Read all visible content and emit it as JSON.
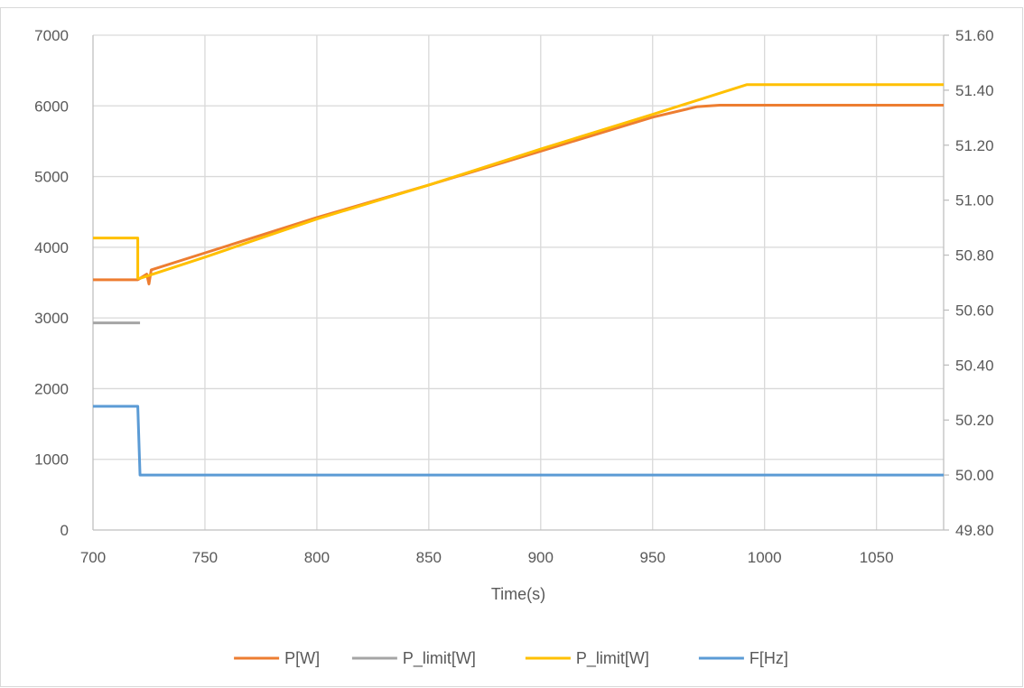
{
  "chart_data": {
    "type": "line",
    "title": "",
    "xlabel": "Time(s)",
    "ylabel": "",
    "y2label": "",
    "xlim": [
      700,
      1080
    ],
    "ylim": [
      0,
      7000
    ],
    "y2lim": [
      49.8,
      51.6
    ],
    "x_ticks": [
      "700",
      "750",
      "800",
      "850",
      "900",
      "950",
      "1000",
      "1050"
    ],
    "y_ticks": [
      "0",
      "1000",
      "2000",
      "3000",
      "4000",
      "5000",
      "6000",
      "7000"
    ],
    "y2_ticks": [
      "49.80",
      "50.00",
      "50.20",
      "50.40",
      "50.60",
      "50.80",
      "51.00",
      "51.20",
      "51.40",
      "51.60"
    ],
    "grid": true,
    "legend_position": "bottom",
    "series": [
      {
        "name": "P[W]",
        "axis": "left",
        "color": "#ED7D31",
        "points": [
          [
            700,
            3540
          ],
          [
            720,
            3540
          ],
          [
            721,
            3560
          ],
          [
            724,
            3620
          ],
          [
            725,
            3480
          ],
          [
            726,
            3680
          ],
          [
            750,
            3920
          ],
          [
            800,
            4420
          ],
          [
            850,
            4880
          ],
          [
            900,
            5360
          ],
          [
            950,
            5840
          ],
          [
            970,
            5990
          ],
          [
            980,
            6010
          ],
          [
            1080,
            6010
          ]
        ]
      },
      {
        "name": "P_limit[W]",
        "axis": "left",
        "color": "#A5A5A5",
        "points": [
          [
            700,
            2930
          ],
          [
            721,
            2930
          ]
        ]
      },
      {
        "name": "P_limit[W]",
        "axis": "left",
        "color": "#FFC000",
        "points": [
          [
            700,
            4130
          ],
          [
            720,
            4130
          ],
          [
            720,
            3560
          ],
          [
            721,
            3560
          ],
          [
            750,
            3860
          ],
          [
            800,
            4400
          ],
          [
            850,
            4880
          ],
          [
            900,
            5390
          ],
          [
            950,
            5880
          ],
          [
            992,
            6300
          ],
          [
            1080,
            6300
          ]
        ]
      },
      {
        "name": "F[Hz]",
        "axis": "right",
        "color": "#5B9BD5",
        "points": [
          [
            700,
            50.25
          ],
          [
            720,
            50.25
          ],
          [
            721,
            50.0
          ],
          [
            1080,
            50.0
          ]
        ]
      }
    ]
  }
}
